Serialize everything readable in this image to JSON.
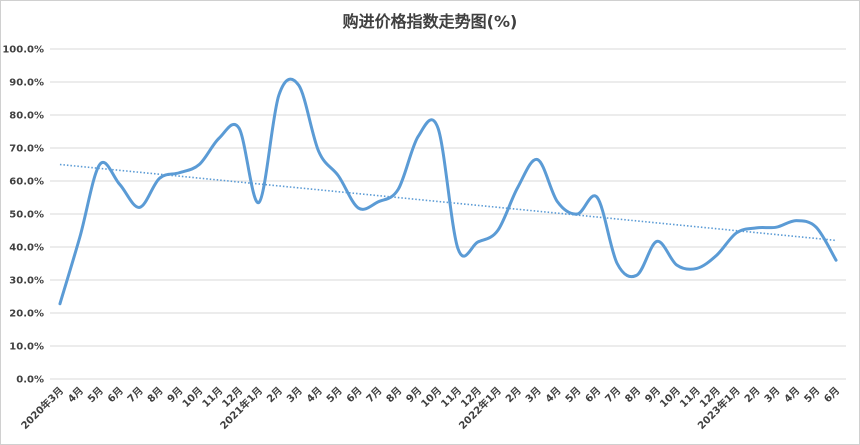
{
  "chart_data": {
    "type": "line",
    "title": "购进价格指数走势图(%)",
    "xlabel": "",
    "ylabel": "",
    "ylim": [
      0,
      100
    ],
    "yticks": [
      "0.0%",
      "10.0%",
      "20.0%",
      "30.0%",
      "40.0%",
      "50.0%",
      "60.0%",
      "70.0%",
      "80.0%",
      "90.0%",
      "100.0%"
    ],
    "categories": [
      "2020年3月",
      "4月",
      "5月",
      "6月",
      "7月",
      "8月",
      "9月",
      "10月",
      "11月",
      "12月",
      "2021年1月",
      "2月",
      "3月",
      "4月",
      "5月",
      "6月",
      "7月",
      "8月",
      "9月",
      "10月",
      "11月",
      "12月",
      "2022年1月",
      "2月",
      "3月",
      "4月",
      "5月",
      "6月",
      "7月",
      "8月",
      "9月",
      "10月",
      "11月",
      "12月",
      "2023年1月",
      "2月",
      "3月",
      "4月",
      "5月",
      "6月"
    ],
    "values": [
      22.8,
      43.0,
      65.0,
      59.0,
      52.0,
      60.8,
      62.5,
      65.0,
      73.0,
      76.0,
      53.5,
      86.0,
      89.0,
      69.0,
      61.5,
      51.8,
      53.7,
      57.5,
      73.5,
      76.0,
      39.5,
      41.5,
      45.0,
      58.0,
      66.5,
      53.7,
      50.0,
      55.0,
      35.0,
      31.5,
      41.7,
      34.5,
      33.5,
      37.5,
      44.3,
      45.8,
      46.0,
      48.0,
      46.0,
      36.0
    ],
    "trendline": {
      "start": 65.0,
      "end": 42.0
    },
    "colors": {
      "line": "#5B9BD5",
      "trend": "#5B9BD5",
      "grid": "#D9D9D9"
    },
    "grid": true,
    "legend": "none"
  }
}
